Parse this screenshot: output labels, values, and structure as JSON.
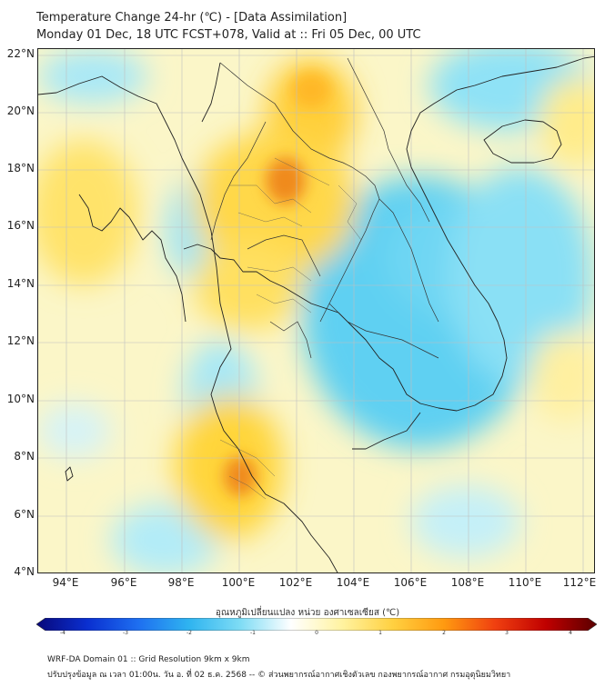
{
  "header": {
    "title_line1": "Temperature Change 24-hr (℃) - [Data Assimilation]",
    "title_line2": "Monday 01 Dec, 18 UTC FCST+078, Valid at :: Fri 05 Dec, 00 UTC"
  },
  "map": {
    "lat_labels": [
      "22°N",
      "20°N",
      "18°N",
      "16°N",
      "14°N",
      "12°N",
      "10°N",
      "8°N",
      "6°N",
      "4°N"
    ],
    "lon_labels": [
      "94°E",
      "96°E",
      "98°E",
      "100°E",
      "102°E",
      "104°E",
      "106°E",
      "108°E",
      "110°E",
      "112°E"
    ],
    "lat_range": [
      4,
      22.2
    ],
    "lon_range": [
      93,
      112.4
    ]
  },
  "colorbar": {
    "title": "อุณหภูมิเปลี่ยนแปลง หน่วย องศาเซลเซียส (℃)",
    "ticks": [
      "-4",
      "-3",
      "-2",
      "-1",
      "0",
      "1",
      "2",
      "3",
      "4"
    ],
    "range": [
      -4,
      4
    ],
    "colors": [
      "#08087a",
      "#0a2fd0",
      "#1e6ff0",
      "#2fb4f0",
      "#7edcf5",
      "#ffffff",
      "#fff3a0",
      "#ffd040",
      "#ff9a10",
      "#f04010",
      "#c00000",
      "#5a0000"
    ]
  },
  "footer": {
    "line1": "WRF-DA Domain 01 :: Grid Resolution 9km x 9km",
    "line2": "ปรับปรุงข้อมูล ณ เวลา 01:00น. วัน อ. ที่ 02 ธ.ค. 2568 -- © ส่วนพยากรณ์อากาศเชิงตัวเลข กองพยากรณ์อากาศ กรมอุตุนิยมวิทยา"
  }
}
